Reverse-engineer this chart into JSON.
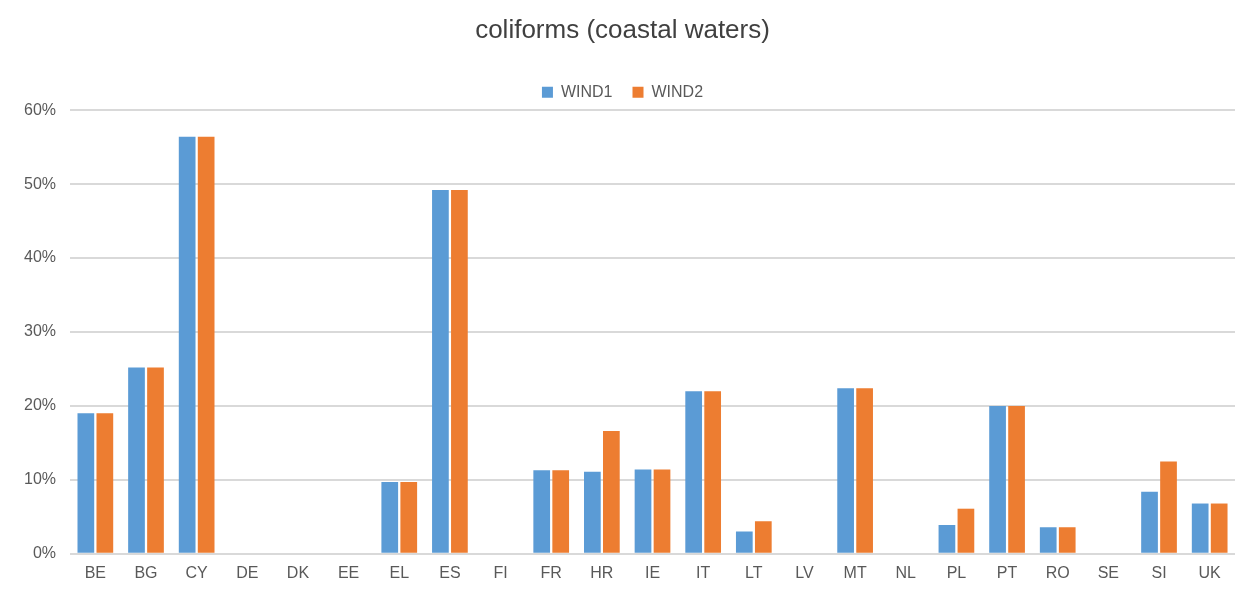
{
  "chart_data": {
    "type": "bar",
    "title": "coliforms (coastal waters)",
    "categories": [
      "BE",
      "BG",
      "CY",
      "DE",
      "DK",
      "EE",
      "EL",
      "ES",
      "FI",
      "FR",
      "HR",
      "IE",
      "IT",
      "LT",
      "LV",
      "MT",
      "NL",
      "PL",
      "PT",
      "RO",
      "SE",
      "SI",
      "UK"
    ],
    "series": [
      {
        "name": "WIND1",
        "color": "#5b9bd5",
        "values": [
          19.0,
          25.2,
          56.4,
          0,
          0,
          0,
          9.7,
          49.2,
          0,
          11.3,
          11.1,
          11.4,
          22.0,
          3.0,
          0,
          22.4,
          0,
          3.9,
          20.0,
          3.6,
          0,
          8.4,
          6.8
        ]
      },
      {
        "name": "WIND2",
        "color": "#ed7d31",
        "values": [
          19.0,
          25.2,
          56.4,
          0,
          0,
          0,
          9.7,
          49.2,
          0,
          11.3,
          16.6,
          11.4,
          22.0,
          4.4,
          0,
          22.4,
          0,
          6.1,
          20.0,
          3.6,
          0,
          12.5,
          6.8
        ]
      }
    ],
    "ylim": [
      0,
      60
    ],
    "yticks": [
      {
        "value": 0,
        "label": "0%"
      },
      {
        "value": 10,
        "label": "10%"
      },
      {
        "value": 20,
        "label": "20%"
      },
      {
        "value": 30,
        "label": "30%"
      },
      {
        "value": 40,
        "label": "40%"
      },
      {
        "value": 50,
        "label": "50%"
      },
      {
        "value": 60,
        "label": "60%"
      }
    ],
    "grid": "y",
    "legend": "top"
  }
}
